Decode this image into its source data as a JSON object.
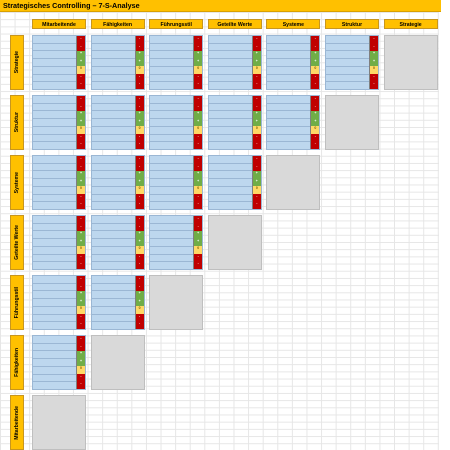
{
  "title": "Strategisches Controlling – 7-S-Analyse",
  "columns": [
    "Mitarbeitende",
    "Fähigkeiten",
    "Führungsstil",
    "Geteilte Werte",
    "Systeme",
    "Struktur",
    "Strategie"
  ],
  "rows": [
    "Strategie",
    "Struktur",
    "Systeme",
    "Geteilte Werte",
    "Führungsstil",
    "Fähigkeiten",
    "Mitarbeitende"
  ],
  "scale": [
    "-",
    "-",
    "+",
    "+",
    "0",
    "-",
    "-"
  ],
  "colors": {
    "header": "#ffc000",
    "cell": "#bdd7ee",
    "diagonal": "#d9d9d9",
    "negative": "#c00000",
    "positive": "#70ad47",
    "neutral": "#ffd966"
  }
}
